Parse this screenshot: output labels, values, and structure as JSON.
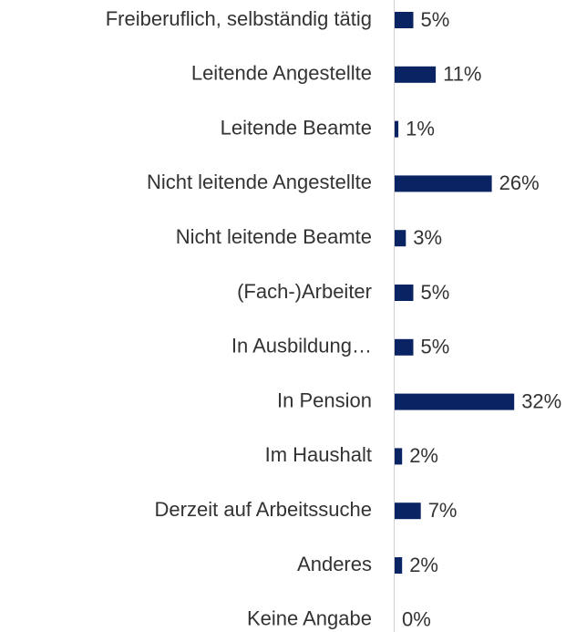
{
  "chart_data": {
    "type": "barh",
    "categories": [
      "Freiberuflich, selbständig tätig",
      "Leitende Angestellte",
      "Leitende Beamte",
      "Nicht leitende Angestellte",
      "Nicht leitende Beamte",
      "(Fach-)Arbeiter",
      "In Ausbildung…",
      "In Pension",
      "Im Haushalt",
      "Derzeit auf Arbeitssuche",
      "Anderes",
      "Keine Angabe"
    ],
    "values": [
      5,
      11,
      1,
      26,
      3,
      5,
      5,
      32,
      2,
      7,
      2,
      0
    ],
    "value_labels": [
      "5%",
      "11%",
      "1%",
      "26%",
      "3%",
      "5%",
      "5%",
      "32%",
      "2%",
      "7%",
      "2%",
      "0%"
    ],
    "color": "#0a2463"
  }
}
